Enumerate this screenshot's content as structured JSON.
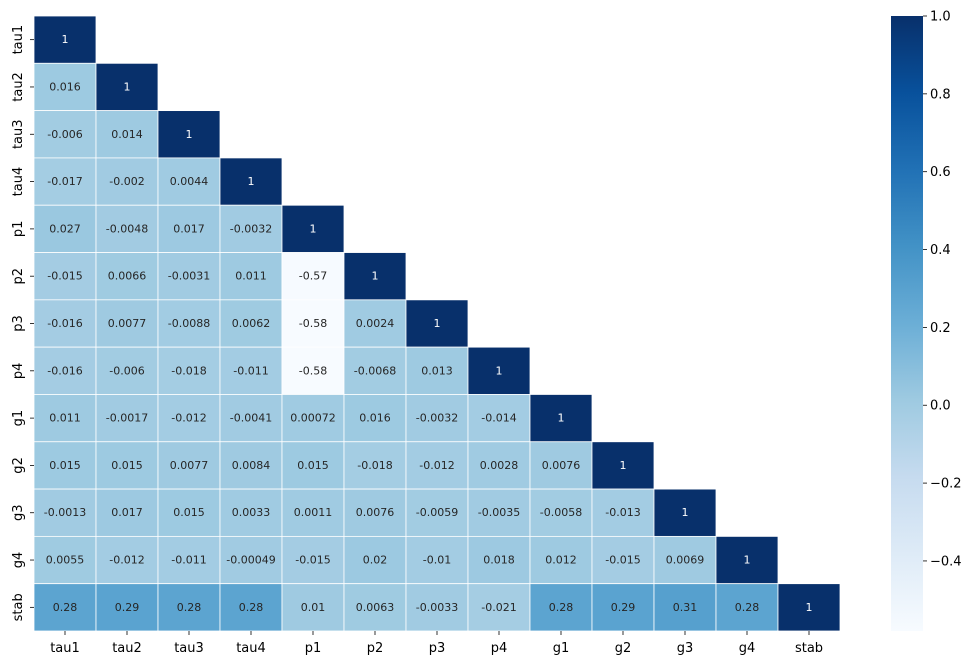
{
  "chart_data": {
    "type": "heatmap",
    "variant": "lower-triangle correlation matrix",
    "labels": [
      "tau1",
      "tau2",
      "tau3",
      "tau4",
      "p1",
      "p2",
      "p3",
      "p4",
      "g1",
      "g2",
      "g3",
      "g4",
      "stab"
    ],
    "value_labels": [
      [
        "1"
      ],
      [
        "0.016",
        "1"
      ],
      [
        "-0.006",
        "0.014",
        "1"
      ],
      [
        "-0.017",
        "-0.002",
        "0.0044",
        "1"
      ],
      [
        "0.027",
        "-0.0048",
        "0.017",
        "-0.0032",
        "1"
      ],
      [
        "-0.015",
        "0.0066",
        "-0.0031",
        "0.011",
        "-0.57",
        "1"
      ],
      [
        "-0.016",
        "0.0077",
        "-0.0088",
        "0.0062",
        "-0.58",
        "0.0024",
        "1"
      ],
      [
        "-0.016",
        "-0.006",
        "-0.018",
        "-0.011",
        "-0.58",
        "-0.0068",
        "0.013",
        "1"
      ],
      [
        "0.011",
        "-0.0017",
        "-0.012",
        "-0.0041",
        "0.00072",
        "0.016",
        "-0.0032",
        "-0.014",
        "1"
      ],
      [
        "0.015",
        "0.015",
        "0.0077",
        "0.0084",
        "0.015",
        "-0.018",
        "-0.012",
        "0.0028",
        "0.0076",
        "1"
      ],
      [
        "-0.0013",
        "0.017",
        "0.015",
        "0.0033",
        "0.0011",
        "0.0076",
        "-0.0059",
        "-0.0035",
        "-0.0058",
        "-0.013",
        "1"
      ],
      [
        "0.0055",
        "-0.012",
        "-0.011",
        "-0.00049",
        "-0.015",
        "0.02",
        "-0.01",
        "0.018",
        "0.012",
        "-0.015",
        "0.0069",
        "1"
      ],
      [
        "0.28",
        "0.29",
        "0.28",
        "0.28",
        "0.01",
        "0.0063",
        "-0.0033",
        "-0.021",
        "0.28",
        "0.29",
        "0.31",
        "0.28",
        "1"
      ]
    ],
    "colorbar": {
      "vmin": -0.58,
      "vmax": 1.0,
      "ticks": [
        1.0,
        0.8,
        0.6,
        0.4,
        0.2,
        0.0,
        -0.2,
        -0.4
      ],
      "tick_labels": [
        "1.0",
        "0.8",
        "0.6",
        "0.4",
        "0.2",
        "0.0",
        "−0.2",
        "−0.4"
      ]
    },
    "colormap": "Blues",
    "colormap_stops": [
      "#f7fbff",
      "#deebf7",
      "#c6dbef",
      "#9ecae1",
      "#6baed6",
      "#4292c6",
      "#2171b5",
      "#08519c",
      "#08306b"
    ],
    "cell_border_color": "#ffffff",
    "grid": false,
    "legend": "colorbar-right"
  }
}
